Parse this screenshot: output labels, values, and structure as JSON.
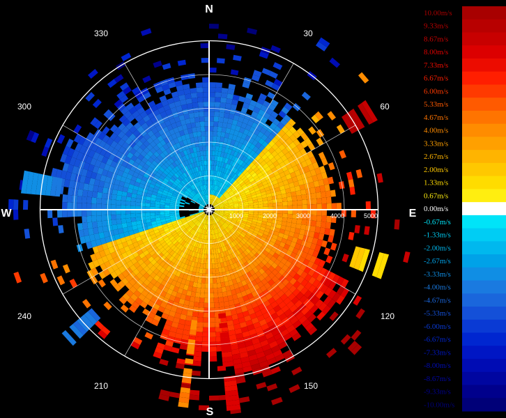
{
  "cardinals": {
    "n": "N",
    "e": "E",
    "s": "S",
    "w": "W"
  },
  "angle_labels": [
    "30",
    "60",
    "120",
    "150",
    "210",
    "240",
    "300",
    "330"
  ],
  "range_labels": [
    "1000",
    "2000",
    "3000",
    "4000",
    "5000"
  ],
  "legend": [
    {
      "label": "10.00m/s",
      "color": "#a80000"
    },
    {
      "label": "9.33m/s",
      "color": "#b80000"
    },
    {
      "label": "8.67m/s",
      "color": "#c80000"
    },
    {
      "label": "8.00m/s",
      "color": "#dc0000"
    },
    {
      "label": "7.33m/s",
      "color": "#ec0c00"
    },
    {
      "label": "6.67m/s",
      "color": "#ff1e00"
    },
    {
      "label": "6.00m/s",
      "color": "#ff3a00"
    },
    {
      "label": "5.33m/s",
      "color": "#ff5a00"
    },
    {
      "label": "4.67m/s",
      "color": "#ff7400"
    },
    {
      "label": "4.00m/s",
      "color": "#ff8c00"
    },
    {
      "label": "3.33m/s",
      "color": "#ffa000"
    },
    {
      "label": "2.67m/s",
      "color": "#ffb400"
    },
    {
      "label": "2.00m/s",
      "color": "#ffc800"
    },
    {
      "label": "1.33m/s",
      "color": "#ffdc00"
    },
    {
      "label": "0.67m/s",
      "color": "#ffee10"
    },
    {
      "label": "0.00m/s",
      "color": "#ffffff"
    },
    {
      "label": "-0.67m/s",
      "color": "#00e4f8"
    },
    {
      "label": "-1.33m/s",
      "color": "#00cdf4"
    },
    {
      "label": "-2.00m/s",
      "color": "#00b8ee"
    },
    {
      "label": "-2.67m/s",
      "color": "#00a2e8"
    },
    {
      "label": "-3.33m/s",
      "color": "#108ee4"
    },
    {
      "label": "-4.00m/s",
      "color": "#1a7ae0"
    },
    {
      "label": "-4.67m/s",
      "color": "#1a66dc"
    },
    {
      "label": "-5.33m/s",
      "color": "#1450d8"
    },
    {
      "label": "-6.00m/s",
      "color": "#0a3ad4"
    },
    {
      "label": "-6.67m/s",
      "color": "#0026d0"
    },
    {
      "label": "-7.33m/s",
      "color": "#0016c4"
    },
    {
      "label": "-8.00m/s",
      "color": "#000cb4"
    },
    {
      "label": "-8.67m/s",
      "color": "#0006a0"
    },
    {
      "label": "-9.33m/s",
      "color": "#00008c"
    },
    {
      "label": "-10.00m/s",
      "color": "#000078"
    }
  ]
}
